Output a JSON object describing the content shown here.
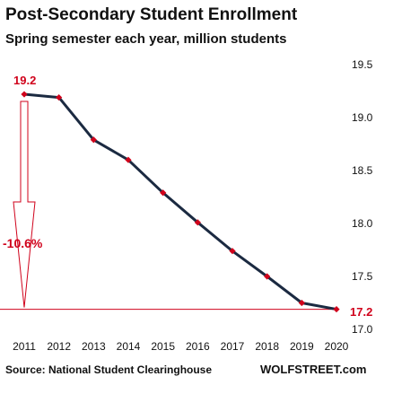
{
  "chart_data": {
    "type": "line",
    "title": "Post-Secondary  Student Enrollment",
    "subtitle": "Spring semester each year, million students",
    "x": [
      "2011",
      "2012",
      "2013",
      "2014",
      "2015",
      "2016",
      "2017",
      "2018",
      "2019",
      "2020"
    ],
    "series": [
      {
        "values": [
          19.22,
          19.19,
          18.79,
          18.6,
          18.29,
          18.01,
          17.74,
          17.5,
          17.25,
          17.19
        ]
      }
    ],
    "ylim": [
      17.0,
      19.5
    ],
    "yticks": [
      "17.0",
      "17.5",
      "18.0",
      "18.5",
      "19.0",
      "19.5"
    ],
    "y_axis_position": "right",
    "grid": false,
    "annotations": {
      "start_label": "19.2",
      "end_label": "17.2",
      "change_label": "-10.6%",
      "reference_line_value": 17.19
    },
    "colors": {
      "line": "#1b2a41",
      "markers": "#d0021b",
      "annotation": "#d0021b"
    }
  },
  "footer": {
    "source": "Source: National Student Clearinghouse",
    "brand": "WOLFSTREET.com"
  }
}
